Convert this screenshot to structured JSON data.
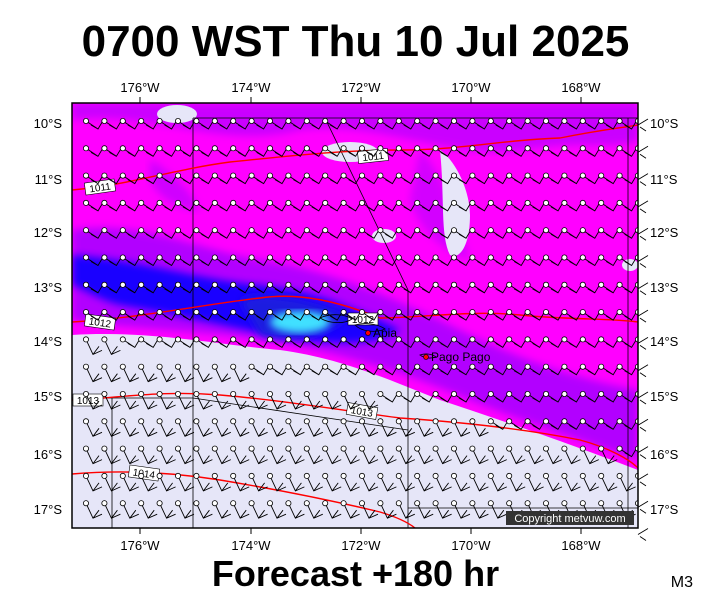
{
  "title": "0700 WST Thu 10 Jul 2025",
  "footer": "Forecast +180 hr",
  "model": "M3",
  "copyright": "Copyright metvuw.com",
  "map": {
    "lon_ticks": [
      "176°W",
      "174°W",
      "172°W",
      "170°W",
      "168°W"
    ],
    "lat_ticks": [
      "10°S",
      "11°S",
      "12°S",
      "13°S",
      "14°S",
      "15°S",
      "16°S",
      "17°S"
    ],
    "cities": [
      {
        "name": "Apia"
      },
      {
        "name": "Pago Pago"
      }
    ],
    "isobars": [
      {
        "label": "1011"
      },
      {
        "label": "1011"
      },
      {
        "label": "1012"
      },
      {
        "label": "1012"
      },
      {
        "label": "1013"
      },
      {
        "label": "1013"
      },
      {
        "label": "1014"
      }
    ],
    "colors": {
      "dry": "#e6e6f8",
      "light": "#ff00ff",
      "moderate": "#a000ff",
      "heavy": "#0000ff",
      "extreme": "#40e0ff",
      "isobar": "#ff0000"
    }
  }
}
